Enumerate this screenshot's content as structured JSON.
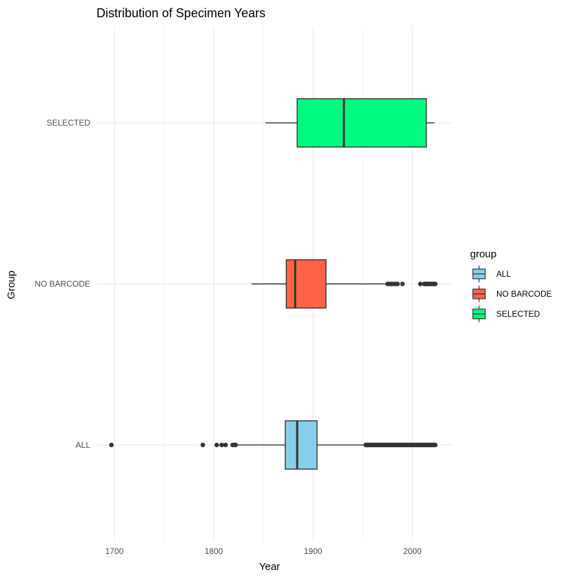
{
  "chart_data": {
    "type": "boxplot",
    "orientation": "horizontal",
    "title": "Distribution of Specimen Years",
    "xlabel": "Year",
    "ylabel": "Group",
    "xlim": [
      1682,
      2040
    ],
    "x_ticks": [
      1700,
      1800,
      1900,
      2000
    ],
    "x_minor_ticks": [
      1750,
      1850,
      1950
    ],
    "grid": true,
    "legend": {
      "title": "group",
      "placement": "right"
    },
    "categories": [
      "ALL",
      "NO BARCODE",
      "SELECTED"
    ],
    "series": [
      {
        "name": "ALL",
        "color": "#87CEEB",
        "whisker_low": 1823,
        "q1": 1872,
        "median": 1884,
        "q3": 1904,
        "whisker_high": 1952,
        "outliers": [
          1697,
          1789,
          1803,
          1808,
          1812,
          1819,
          1821,
          1822
        ],
        "outlier_dense_range": [
          1953,
          2023
        ]
      },
      {
        "name": "NO BARCODE",
        "color": "#FF6347",
        "whisker_low": 1838,
        "q1": 1873,
        "median": 1882,
        "q3": 1913,
        "whisker_high": 1974,
        "outliers": [
          1975,
          1977,
          1979,
          1981,
          1983,
          1985,
          1990,
          2008,
          2012
        ],
        "outlier_dense_range": [
          2012,
          2023
        ]
      },
      {
        "name": "SELECTED",
        "color": "#00FA7F",
        "whisker_low": 1852,
        "q1": 1884,
        "median": 1931,
        "q3": 2014,
        "whisker_high": 2022,
        "outliers": [],
        "outlier_dense_range": null
      }
    ]
  }
}
